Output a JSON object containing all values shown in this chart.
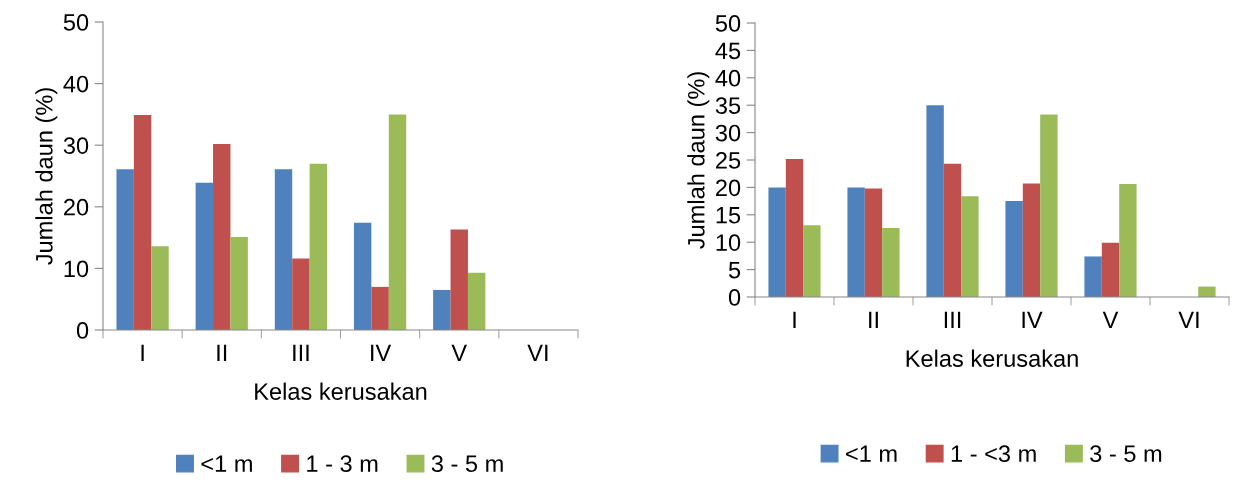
{
  "chart_data": [
    {
      "type": "bar",
      "xlabel": "Kelas kerusakan",
      "ylabel": "Jumlah daun (%)",
      "categories": [
        "I",
        "II",
        "III",
        "IV",
        "V",
        "VI"
      ],
      "ylim": [
        0,
        50
      ],
      "yticks": [
        0,
        10,
        20,
        30,
        40,
        50
      ],
      "grid": false,
      "legend": "bottom",
      "series": [
        {
          "name": "<1 m",
          "color": "#4f81bd",
          "values": [
            26.1,
            23.9,
            26.1,
            17.4,
            6.5,
            0
          ]
        },
        {
          "name": "1 - 3 m",
          "color": "#c0504d",
          "values": [
            34.9,
            30.2,
            11.6,
            7.0,
            16.3,
            0
          ]
        },
        {
          "name": "3 - 5 m",
          "color": "#9bbb59",
          "values": [
            13.6,
            15.1,
            27.0,
            35.0,
            9.3,
            0
          ]
        }
      ]
    },
    {
      "type": "bar",
      "xlabel": "Kelas kerusakan",
      "ylabel": "Jumlah daun (%)",
      "categories": [
        "I",
        "II",
        "III",
        "IV",
        "V",
        "VI"
      ],
      "ylim": [
        0,
        50
      ],
      "yticks": [
        0,
        5,
        10,
        15,
        20,
        25,
        30,
        35,
        40,
        45,
        50
      ],
      "grid": false,
      "legend": "bottom",
      "series": [
        {
          "name": "<1 m",
          "color": "#4f81bd",
          "values": [
            20.0,
            20.0,
            35.0,
            17.5,
            7.4,
            0
          ]
        },
        {
          "name": "1 - <3 m",
          "color": "#c0504d",
          "values": [
            25.2,
            19.8,
            24.3,
            20.7,
            9.9,
            0
          ]
        },
        {
          "name": "3 - 5 m",
          "color": "#9bbb59",
          "values": [
            13.1,
            12.6,
            18.4,
            33.3,
            20.6,
            1.9
          ]
        }
      ]
    }
  ]
}
